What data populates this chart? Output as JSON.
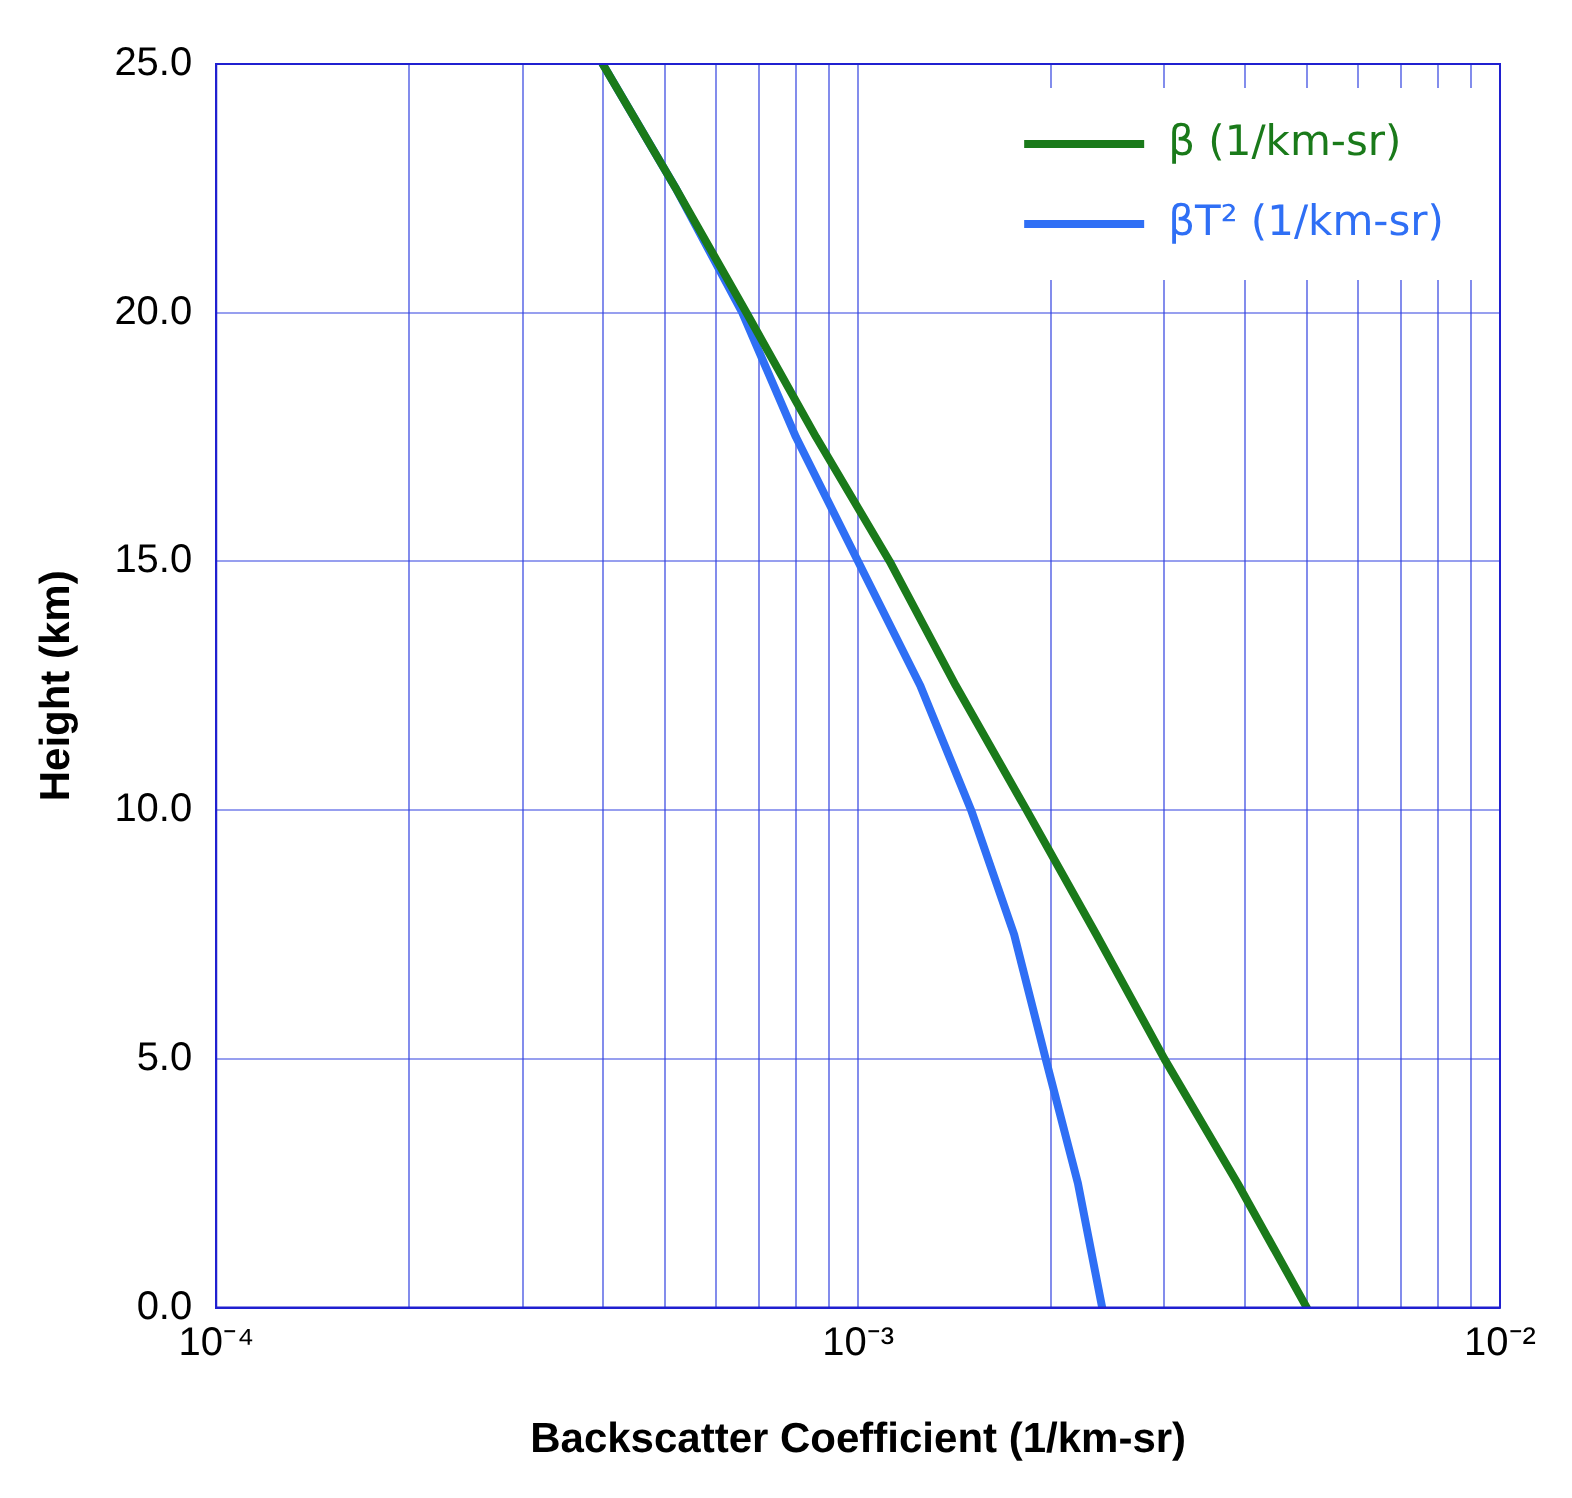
{
  "chart_data": {
    "type": "line",
    "xlabel": "Backscatter Coefficient (1/km-sr)",
    "ylabel": "Height (km)",
    "log": "x",
    "xlim": [
      0.0001,
      0.01
    ],
    "ylim": [
      0,
      25
    ],
    "xticks": [
      {
        "value": 0.0001,
        "label": "10⁻⁴"
      },
      {
        "value": 0.0002,
        "label": null
      },
      {
        "value": 0.0003,
        "label": null
      },
      {
        "value": 0.0004,
        "label": null
      },
      {
        "value": 0.0005,
        "label": null
      },
      {
        "value": 0.0006,
        "label": null
      },
      {
        "value": 0.0007,
        "label": null
      },
      {
        "value": 0.0008,
        "label": null
      },
      {
        "value": 0.0009,
        "label": null
      },
      {
        "value": 0.001,
        "label": "10⁻³"
      },
      {
        "value": 0.002,
        "label": null
      },
      {
        "value": 0.003,
        "label": null
      },
      {
        "value": 0.004,
        "label": null
      },
      {
        "value": 0.005,
        "label": null
      },
      {
        "value": 0.006,
        "label": null
      },
      {
        "value": 0.007,
        "label": null
      },
      {
        "value": 0.008,
        "label": null
      },
      {
        "value": 0.009,
        "label": null
      },
      {
        "value": 0.01,
        "label": "10⁻²"
      }
    ],
    "yticks": [
      {
        "value": 0,
        "label": "0.0"
      },
      {
        "value": 5,
        "label": "5.0"
      },
      {
        "value": 10,
        "label": "10.0"
      },
      {
        "value": 15,
        "label": "15.0"
      },
      {
        "value": 20,
        "label": "20.0"
      },
      {
        "value": 25,
        "label": "25.0"
      }
    ],
    "grid": true,
    "legend": "top right",
    "marker": "none",
    "line_style": "solid",
    "series": [
      {
        "name": "β (1/km-sr)",
        "color": "#1a7a1a",
        "x": [
          0.005,
          0.0039,
          0.003,
          0.00235,
          0.00183,
          0.00142,
          0.00112,
          0.00086,
          0.00067,
          0.00052,
          0.0004
        ],
        "values": [
          0,
          2.5,
          5,
          7.5,
          10,
          12.5,
          15,
          17.5,
          20,
          22.5,
          25
        ]
      },
      {
        "name": "βT² (1/km-sr)",
        "color": "#2f6ff5",
        "x": [
          0.0024,
          0.0022,
          0.00196,
          0.00175,
          0.0015,
          0.00125,
          0.001,
          0.0008,
          0.00066,
          0.00052,
          0.0004
        ],
        "values": [
          0,
          2.5,
          5,
          7.5,
          10,
          12.5,
          15,
          17.5,
          20,
          22.5,
          25
        ]
      }
    ]
  }
}
